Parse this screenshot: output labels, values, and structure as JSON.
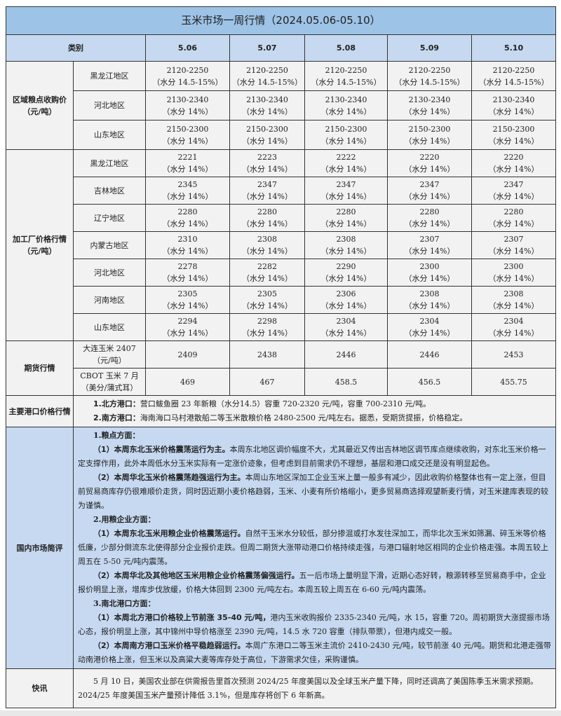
{
  "title": "玉米市场一周行情（2024.05.06-05.10）",
  "header": {
    "category": "类别",
    "dates": [
      "5.06",
      "5.07",
      "5.08",
      "5.09",
      "5.10"
    ]
  },
  "regional": {
    "label": "区域粮点收购价",
    "unit": "（元/吨）",
    "rows": [
      {
        "region": "黑龙江地区",
        "prices": [
          "2120-2250",
          "2120-2250",
          "2120-2250",
          "2120-2250",
          "2120-2250"
        ],
        "note": "（水分 14.5-15%）"
      },
      {
        "region": "河北地区",
        "prices": [
          "2130-2340",
          "2130-2340",
          "2130-2340",
          "2130-2340",
          "2130-2340"
        ],
        "note": "（水分 14%）"
      },
      {
        "region": "山东地区",
        "prices": [
          "2150-2300",
          "2150-2300",
          "2150-2300",
          "2150-2300",
          "2150-2300"
        ],
        "note": "（水分 14%）"
      }
    ]
  },
  "plant": {
    "label": "加工厂价格行情",
    "unit": "（元/吨）",
    "note": "（水分 14%）",
    "rows": [
      {
        "region": "黑龙江地区",
        "prices": [
          "2221",
          "2223",
          "2222",
          "2220",
          "2220"
        ]
      },
      {
        "region": "吉林地区",
        "prices": [
          "2345",
          "2347",
          "2347",
          "2347",
          "2347"
        ]
      },
      {
        "region": "辽宁地区",
        "prices": [
          "2280",
          "2280",
          "2280",
          "2280",
          "2280"
        ]
      },
      {
        "region": "内蒙古地区",
        "prices": [
          "2310",
          "2308",
          "2308",
          "2307",
          "2307"
        ]
      },
      {
        "region": "河北地区",
        "prices": [
          "2278",
          "2282",
          "2290",
          "2300",
          "2300"
        ]
      },
      {
        "region": "河南地区",
        "prices": [
          "2305",
          "2305",
          "2306",
          "2308",
          "2308"
        ]
      },
      {
        "region": "山东地区",
        "prices": [
          "2294",
          "2298",
          "2304",
          "2304",
          "2304"
        ]
      }
    ]
  },
  "futures": {
    "label": "期货行情",
    "rows": [
      {
        "name": "大连玉米 2407",
        "unit": "（元/吨）",
        "values": [
          "2409",
          "2438",
          "2446",
          "2446",
          "2453"
        ]
      },
      {
        "name": "CBOT 玉米 7 月",
        "unit": "（美分/蒲式耳）",
        "values": [
          "469",
          "467",
          "458.5",
          "456.5",
          "455.75"
        ]
      }
    ]
  },
  "ports": {
    "label": "主要港口价格行情",
    "items": [
      {
        "head": "1.北方港口：",
        "text": "营口鲅鱼圈 23 年新粮（水分14.5）容重 720-2320 元/吨，容重 700-2310 元/吨。"
      },
      {
        "head": "2.南方港口：",
        "text": "海南海口马村港散船二等玉米散粮价格 2480-2500 元/吨左右。据悉，受期货提振，价格稳定。"
      }
    ]
  },
  "review": {
    "label": "国内市场简评",
    "sections": [
      {
        "heading": "1.粮点方面：",
        "paras": [
          {
            "bold": "（1）本周东北玉米价格震荡运行为主。",
            "text": "本周东北地区调价幅度不大，尤其最近又传出吉林地区调节库点继续收购，对东北玉米价格一定支撑作用，此外本周低水分玉米实际有一定涨价迹象，但考虑到目前需求仍不理想，基层和港口成交还是没有明显起色。"
          },
          {
            "bold": "（2）本周华北玉米价格震荡趋强运行为主。",
            "text": "本周山东地区深加工企业玉米上量一般多有减少，因此收购价格整体也有一定上涨，但目前贸易商库存仍很难顺价走货，同时因近期小麦价格趋弱，玉米、小麦有所价格缩小，更多贸易商选择观望新麦行情，对玉米建库表现的较为谨慎。"
          }
        ]
      },
      {
        "heading": "2.用粮企业方面：",
        "paras": [
          {
            "bold": "（1）本周东北玉米用粮企业价格震荡运行。",
            "text": "自然干玉米水分较低，部分掺混或打水发往深加工，而华北次玉米如筛漏、碎玉米等价格低廉，少部分倒流东北使得部分企业报价走跌。但周二期货大涨带动港口价格持续走强，与港口辐射地区相同的企业价格走强。本周五较上周五在 5-50 元/吨内震荡。"
          },
          {
            "bold": "（2）本周华北及其他地区玉米用粮企业价格震荡偏强运行。",
            "text": "五一后市场上量明显下滑，近期心态好转，粮源转移至贸易商手中，企业报价明显上涨，增库步伐放缓，价格大体回到 2300 元/吨左右。本周五较上周五在 6-60 元/吨内震荡。"
          }
        ]
      },
      {
        "heading": "3.南北港口方面：",
        "paras": [
          {
            "bold": "（1）本周北方港口价格较上节前涨 35-40 元/吨，",
            "text": "港内玉米收购报价 2335-2340 元/吨，水 15，容重 720。周初期货大涨提振市场心态，报价明显上涨，其中锦州中导价格涨至 2390 元/吨，14.5 水 720 容重（排队带票），但港内成交一般。"
          },
          {
            "bold": "（2）本周南方港口玉米价格平稳趋弱运行。",
            "text": "本周广东港口二等玉米主流价 2410-2430 元/吨，较节前涨 40 元/吨。期货和北港走强带动南港价格上涨，但玉米以及高粱大麦等库存处于高位，下游需求欠佳，采购谨慎。"
          }
        ]
      }
    ]
  },
  "news": {
    "label": "快讯",
    "text": "5 月 10 日，美国农业部在供需报告里首次预测 2024/25 年度美国以及全球玉米产量下降，同时还调高了美国陈季玉米需求预期。2024/25 年度美国玉米产量预计降低 3.1%，但是库存将创下 6 年新高。"
  },
  "colors": {
    "title_bg": "#9dc3e6",
    "header_bg": "#c6d9f0",
    "cell_bg": "#f2f2f2",
    "review_bg": "#c6d9f0"
  }
}
